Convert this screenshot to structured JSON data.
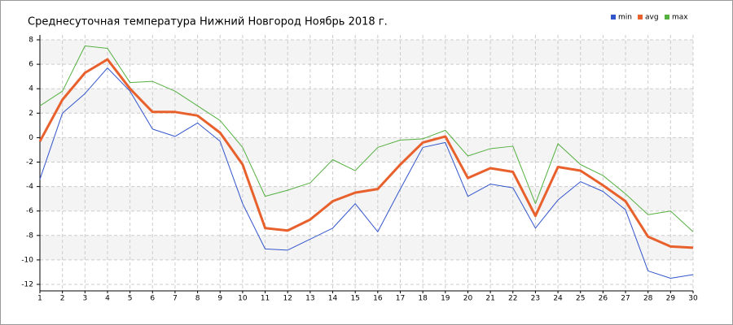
{
  "chart_data": {
    "type": "line",
    "title": "Среднесуточная температура Нижний Новгород  Ноябрь 2018 г.",
    "x": [
      1,
      2,
      3,
      4,
      5,
      6,
      7,
      8,
      9,
      10,
      11,
      12,
      13,
      14,
      15,
      16,
      17,
      18,
      19,
      20,
      21,
      22,
      23,
      24,
      25,
      26,
      27,
      28,
      29,
      30
    ],
    "series": [
      {
        "name": "min",
        "color": "#3355cc",
        "values": [
          -3.4,
          2.0,
          3.6,
          5.7,
          3.8,
          0.7,
          0.1,
          1.2,
          -0.3,
          -5.4,
          -9.1,
          -9.2,
          -8.3,
          -7.4,
          -5.4,
          -7.7,
          -4.2,
          -0.8,
          -0.4,
          -4.8,
          -3.8,
          -4.1,
          -7.4,
          -5.1,
          -3.6,
          -4.4,
          -5.9,
          -10.9,
          -11.5,
          -11.2
        ]
      },
      {
        "name": "avg",
        "color": "#e8602c",
        "values": [
          -0.3,
          3.1,
          5.3,
          6.4,
          4.0,
          2.1,
          2.1,
          1.8,
          0.4,
          -2.2,
          -7.4,
          -7.6,
          -6.7,
          -5.2,
          -4.5,
          -4.2,
          -2.2,
          -0.4,
          0.1,
          -3.3,
          -2.5,
          -2.8,
          -6.4,
          -2.4,
          -2.7,
          -3.9,
          -5.2,
          -8.1,
          -8.9,
          -9.0
        ]
      },
      {
        "name": "max",
        "color": "#55b040",
        "values": [
          2.6,
          3.8,
          7.5,
          7.3,
          4.5,
          4.6,
          3.8,
          2.6,
          1.4,
          -0.8,
          -4.8,
          -4.3,
          -3.7,
          -1.8,
          -2.7,
          -0.8,
          -0.2,
          -0.1,
          0.6,
          -1.5,
          -0.9,
          -0.7,
          -5.4,
          -0.5,
          -2.2,
          -3.1,
          -4.6,
          -6.3,
          -6.0,
          -7.7
        ]
      }
    ],
    "xlim": [
      1,
      30
    ],
    "xticks": [
      1,
      2,
      3,
      4,
      5,
      6,
      7,
      8,
      9,
      10,
      11,
      12,
      13,
      14,
      15,
      16,
      17,
      18,
      19,
      20,
      21,
      22,
      23,
      24,
      25,
      26,
      27,
      28,
      29,
      30
    ],
    "ylim": [
      -12,
      8
    ],
    "yticks": [
      -12,
      -10,
      -8,
      -6,
      -4,
      -2,
      0,
      2,
      4,
      6,
      8
    ],
    "grid": true,
    "legend": "top-right"
  }
}
